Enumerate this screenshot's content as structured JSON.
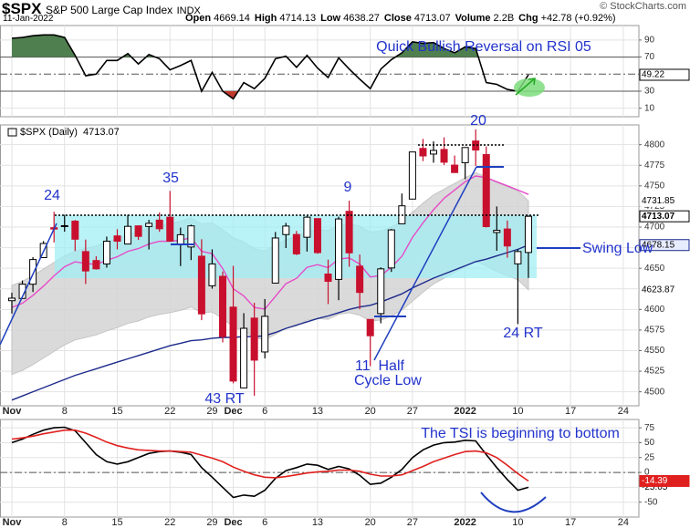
{
  "header": {
    "symbol": "$SPX",
    "name": "S&P 500 Large Cap Index",
    "exchange": "INDX",
    "date": "11-Jan-2022",
    "quote": [
      {
        "label": "Open",
        "value": 4669.14
      },
      {
        "label": "High",
        "value": 4714.13
      },
      {
        "label": "Low",
        "value": 4638.27
      },
      {
        "label": "Close",
        "value": 4713.07
      },
      {
        "label": "Volume",
        "value": "2.2B"
      },
      {
        "label": "Chg",
        "value": "+42.78 (+0.92%)"
      }
    ],
    "credit": "© StockCharts.com"
  },
  "chart_data": [
    {
      "type": "line",
      "grid": true,
      "ylim": [
        0,
        107
      ],
      "yticks": [
        90,
        70,
        30,
        10
      ],
      "levels": [
        {
          "value": 70,
          "style": "solid"
        },
        {
          "value": 50,
          "style": "dash"
        },
        {
          "value": 30,
          "style": "solid"
        }
      ],
      "fills": [
        {
          "above": 70,
          "color": "#4f7f4f"
        },
        {
          "below": 30,
          "color": "#c0392b"
        }
      ],
      "series": [
        {
          "color": "#000000",
          "values": [
            92,
            93,
            95,
            96,
            96,
            93,
            72,
            48,
            50,
            66,
            66,
            74,
            62,
            73,
            68,
            55,
            60,
            66,
            30,
            52,
            30,
            21,
            40,
            33,
            45,
            68,
            71,
            58,
            72,
            57,
            46,
            69,
            56,
            44,
            33,
            56,
            67,
            75,
            88,
            86,
            87,
            80,
            75,
            82,
            80,
            40,
            38,
            32,
            30,
            49.22,
            null,
            null,
            null,
            null,
            null,
            null,
            null,
            null,
            null,
            null
          ]
        }
      ],
      "annotations": [
        "Quick Bullish Reversal on RSI 05"
      ]
    },
    {
      "type": "candlestick",
      "grid": true,
      "legend": "$SPX (Daily)",
      "ylim": [
        4483,
        4824
      ],
      "yticks": [
        4500,
        4525,
        4550,
        4575,
        4600,
        4625,
        4650,
        4675,
        4700,
        4725,
        4750,
        4775,
        4800
      ],
      "categories": [
        "Nov",
        null,
        null,
        null,
        null,
        "8",
        null,
        null,
        null,
        null,
        "15",
        null,
        null,
        null,
        null,
        "22",
        null,
        null,
        null,
        "29",
        null,
        "Dec",
        null,
        null,
        "6",
        null,
        null,
        null,
        null,
        "13",
        null,
        null,
        null,
        null,
        "20",
        null,
        null,
        null,
        "27",
        null,
        null,
        null,
        null,
        "2022",
        null,
        null,
        null,
        null,
        "10",
        null,
        null,
        null,
        null,
        "17",
        null,
        null,
        null,
        null,
        "24",
        null
      ],
      "up_color": "#ffffff",
      "down_color": "#c8102e",
      "open": [
        4610.62,
        4613.34,
        4630.65,
        4662.93,
        4699.26,
        4701.48,
        4707.25,
        4670.26,
        4659.39,
        4655.24,
        4689.3,
        4679.42,
        4701.5,
        4700.72,
        4708.44,
        4712.0,
        4678.48,
        4675.78,
        4664.63,
        4628.75,
        4640.25,
        4602.82,
        4504.73,
        4589.49,
        4548.37,
        4631.97,
        4690.86,
        4691.0,
        4687.64,
        4710.3,
        4642.99,
        4636.46,
        4719.13,
        4652.5,
        4587.9,
        4594.96,
        4650.36,
        4703.96,
        4733.99,
        4795.49,
        4788.64,
        4794.23,
        4775.21,
        4778.14,
        4804.51,
        4787.99,
        4693.39,
        4697.66,
        4655.34,
        4669.14,
        null,
        null,
        null,
        null,
        null,
        null,
        null,
        null,
        null,
        null
      ],
      "high": [
        4620.34,
        4635.15,
        4663.46,
        4683.0,
        4718.5,
        4714.92,
        4708.53,
        4684.85,
        4664.55,
        4688.47,
        4697.42,
        4714.95,
        4701.5,
        4708.8,
        4717.75,
        4743.83,
        4699.39,
        4702.87,
        4685.25,
        4672.95,
        4646.02,
        4652.94,
        4595.46,
        4608.03,
        4612.6,
        4694.04,
        4705.06,
        4695.26,
        4713.57,
        4710.3,
        4660.47,
        4712.6,
        4731.99,
        4666.7,
        4587.9,
        4651.14,
        4697.67,
        4740.74,
        4791.49,
        4807.02,
        4804.06,
        4808.93,
        4786.83,
        4796.64,
        4818.62,
        4797.7,
        4725.01,
        4707.95,
        4673.02,
        4714.13,
        null,
        null,
        null,
        null,
        null,
        null,
        null,
        null,
        null,
        null
      ],
      "low": [
        4595.06,
        4613.34,
        4621.19,
        4662.59,
        4681.32,
        4694.39,
        4670.87,
        4630.86,
        4648.31,
        4650.77,
        4672.86,
        4679.42,
        4684.41,
        4672.78,
        4694.22,
        4682.17,
        4652.66,
        4659.89,
        4586.98,
        4625.26,
        4560.0,
        4510.27,
        4504.73,
        4495.12,
        4540.51,
        4631.97,
        4674.52,
        4665.98,
        4670.24,
        4667.6,
        4606.52,
        4611.22,
        4651.89,
        4600.22,
        4531.1,
        4583.16,
        4645.53,
        4703.96,
        4733.99,
        4780.04,
        4778.08,
        4775.33,
        4765.75,
        4758.17,
        4774.27,
        4699.44,
        4671.26,
        4662.74,
        4582.24,
        4638.27,
        null,
        null,
        null,
        null,
        null,
        null,
        null,
        null,
        null,
        null
      ],
      "close": [
        4613.67,
        4630.65,
        4660.57,
        4680.06,
        4697.53,
        4701.7,
        4685.25,
        4646.71,
        4649.27,
        4682.85,
        4682.8,
        4700.9,
        4688.67,
        4704.54,
        4697.96,
        4682.94,
        4690.7,
        4701.46,
        4594.62,
        4655.27,
        4567.0,
        4513.04,
        4577.1,
        4538.43,
        4591.67,
        4686.75,
        4701.21,
        4667.45,
        4712.02,
        4668.97,
        4634.09,
        4709.85,
        4668.67,
        4620.64,
        4568.02,
        4649.23,
        4696.56,
        4725.79,
        4791.19,
        4786.35,
        4793.06,
        4778.73,
        4766.18,
        4796.56,
        4793.54,
        4700.58,
        4696.05,
        4677.03,
        4670.29,
        4713.07,
        null,
        null,
        null,
        null,
        null,
        null,
        null,
        null,
        null,
        null
      ],
      "band": {
        "color": "#d4d4d4",
        "upper": [
          4629,
          4634,
          4641,
          4649,
          4657,
          4665,
          4671,
          4674,
          4677,
          4682,
          4686,
          4691,
          4694,
          4699,
          4702,
          4704,
          4707,
          4711,
          4704,
          4705,
          4697,
          4687,
          4682,
          4674,
          4671,
          4678,
          4685,
          4688,
          4695,
          4697,
          4696,
          4702,
          4704,
          4701,
          4694,
          4695,
          4700,
          4707,
          4718,
          4729,
          4739,
          4746,
          4753,
          4760,
          4766,
          4761,
          4754,
          4749,
          4744,
          4731.85,
          null,
          null,
          null,
          null,
          null,
          null,
          null,
          null,
          null,
          null
        ],
        "lower": [
          4521,
          4526,
          4533,
          4541,
          4549,
          4557,
          4563,
          4566,
          4569,
          4574,
          4578,
          4583,
          4586,
          4591,
          4594,
          4596,
          4599,
          4603,
          4596,
          4597,
          4589,
          4579,
          4574,
          4566,
          4563,
          4570,
          4577,
          4580,
          4587,
          4589,
          4588,
          4594,
          4596,
          4593,
          4586,
          4587,
          4592,
          4599,
          4610,
          4621,
          4631,
          4638,
          4645,
          4652,
          4658,
          4653,
          4646,
          4641,
          4636,
          4623.87,
          null,
          null,
          null,
          null,
          null,
          null,
          null,
          null,
          null,
          null
        ]
      },
      "overlays": [
        {
          "color": "#e64bc8",
          "values": [
            4602.5,
            4607.6,
            4617.1,
            4628.4,
            4640.8,
            4651.8,
            4657.8,
            4655.8,
            4654.6,
            4659.7,
            4663.9,
            4670.6,
            4673.9,
            4679.4,
            4682.7,
            4682.7,
            4684.1,
            4687.2,
            4670.5,
            4667.8,
            4649.6,
            4625.0,
            4616.4,
            4602.4,
            4600.5,
            4616.0,
            4631.3,
            4637.8,
            4651.2,
            4654.4,
            4650.7,
            4661.3,
            4662.6,
            4655.0,
            4639.4,
            4641.2,
            4651.2,
            4664.6,
            4687.4,
            4705.2,
            4721.0,
            4735.0,
            4745.0,
            4755.0,
            4762.0,
            4760.0,
            4755.0,
            4750.0,
            4745.0,
            4739.6,
            null,
            null,
            null,
            null,
            null,
            null,
            null,
            null,
            null,
            null
          ]
        },
        {
          "color": "#1c2a8c",
          "values": [
            4490,
            4495,
            4500,
            4505,
            4510,
            4515,
            4520,
            4524,
            4528,
            4532,
            4536,
            4540,
            4544,
            4548,
            4552,
            4556,
            4559,
            4562,
            4563,
            4565,
            4566,
            4566,
            4567,
            4567,
            4568,
            4572,
            4577,
            4581,
            4585,
            4589,
            4592,
            4596,
            4600,
            4603,
            4605,
            4609,
            4614,
            4619,
            4626,
            4632,
            4638,
            4643,
            4648,
            4653,
            4658,
            4661,
            4665,
            4669,
            4673,
            4678.15,
            null,
            null,
            null,
            null,
            null,
            null,
            null,
            null,
            null,
            null
          ]
        }
      ],
      "annotations": [
        "24",
        "35",
        "9",
        "20",
        "43 RT",
        "11  Half",
        "Cycle Low",
        "24 RT",
        "Swing Low"
      ]
    },
    {
      "type": "line",
      "grid": true,
      "ylim": [
        -75,
        89
      ],
      "yticks": [
        75,
        50,
        25,
        0,
        -25,
        -50
      ],
      "levels": [
        {
          "value": 0,
          "style": "dash"
        }
      ],
      "series": [
        {
          "color": "#000000",
          "values": [
            50,
            56,
            64,
            71,
            75,
            76,
            70,
            50,
            30,
            18,
            14,
            18,
            25,
            32,
            35,
            36,
            34,
            30,
            8,
            -8,
            -25,
            -42,
            -38,
            -40,
            -30,
            -10,
            3,
            8,
            14,
            12,
            5,
            10,
            6,
            -5,
            -20,
            -18,
            -8,
            5,
            25,
            38,
            46,
            50,
            51,
            54,
            53,
            30,
            8,
            -12,
            -30,
            -25.05,
            null,
            null,
            null,
            null,
            null,
            null,
            null,
            null,
            null,
            null
          ]
        },
        {
          "color": "#e0201e",
          "values": [
            56,
            58,
            61,
            65,
            68,
            71,
            71,
            66,
            59,
            51,
            45,
            41,
            38,
            37,
            36,
            36,
            35,
            34,
            29,
            24,
            18,
            9,
            2,
            -4,
            -8,
            -9,
            -7,
            -4,
            -1,
            1,
            2,
            4,
            4,
            2,
            -3,
            -6,
            -6,
            -4,
            3,
            10,
            18,
            24,
            30,
            35,
            36,
            33,
            25,
            12,
            -2,
            -14.39,
            null,
            null,
            null,
            null,
            null,
            null,
            null,
            null,
            null,
            null
          ]
        }
      ],
      "annotations": [
        "The TSI is beginning to bottom"
      ]
    }
  ]
}
